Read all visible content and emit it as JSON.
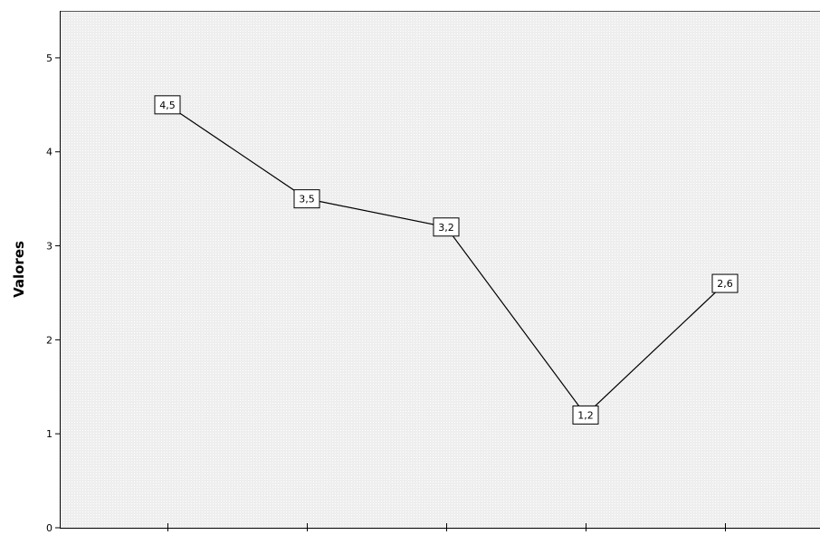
{
  "chart_data": {
    "type": "line",
    "title": "",
    "xlabel": "",
    "ylabel": "Valores",
    "ylim": [
      0,
      5.5
    ],
    "yticks": [
      0,
      1,
      2,
      3,
      4,
      5
    ],
    "ytick_labels": [
      "0",
      "1",
      "2",
      "3",
      "4",
      "5"
    ],
    "categories": [
      "",
      "",
      "",
      "",
      ""
    ],
    "values": [
      4.5,
      3.5,
      3.2,
      1.2,
      2.6
    ],
    "data_labels": [
      "4,5",
      "3,5",
      "3,2",
      "1,2",
      "2,6"
    ],
    "grid": false,
    "legend": "none",
    "colors": {
      "plot_background": "#f0f0f0",
      "line": "#000000",
      "label_box": "#ffffff",
      "axis": "#000000"
    }
  }
}
